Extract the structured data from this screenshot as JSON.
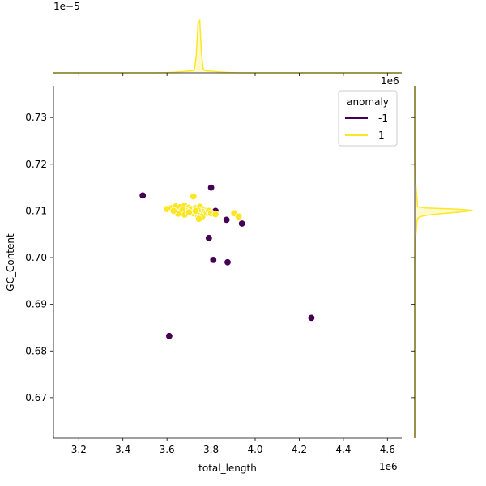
{
  "chart_data": {
    "type": "scatter",
    "title": "",
    "xlabel": "total_length",
    "ylabel": "GC_Content",
    "x_offset_label": "1e6",
    "top_marginal_offset_label": "1e−5",
    "right_marginal_offset_label": "1e6",
    "xlim": [
      3.085,
      4.665
    ],
    "ylim": [
      0.6613,
      0.7368
    ],
    "x_ticks": [
      "3.2",
      "3.4",
      "3.6",
      "3.8",
      "4.0",
      "4.2",
      "4.4",
      "4.6"
    ],
    "y_ticks": [
      "0.67",
      "0.68",
      "0.69",
      "0.70",
      "0.71",
      "0.72",
      "0.73"
    ],
    "grid": false,
    "legend": {
      "title": "anomaly",
      "placement": "top-right",
      "entries": [
        {
          "label": "-1",
          "color": "#440154"
        },
        {
          "label": "1",
          "color": "#fde725"
        }
      ]
    },
    "series": [
      {
        "name": "-1",
        "color": "#440154",
        "points": [
          [
            3.49,
            0.7133
          ],
          [
            3.8,
            0.715
          ],
          [
            3.82,
            0.71
          ],
          [
            3.87,
            0.7081
          ],
          [
            3.94,
            0.7073
          ],
          [
            3.79,
            0.7042
          ],
          [
            3.81,
            0.6995
          ],
          [
            3.875,
            0.699
          ],
          [
            4.255,
            0.6871
          ],
          [
            3.61,
            0.6832
          ]
        ]
      },
      {
        "name": "1",
        "color": "#fde725",
        "points": [
          [
            3.72,
            0.7131
          ],
          [
            3.6,
            0.7104
          ],
          [
            3.62,
            0.7106
          ],
          [
            3.64,
            0.711
          ],
          [
            3.66,
            0.7108
          ],
          [
            3.68,
            0.7111
          ],
          [
            3.7,
            0.7107
          ],
          [
            3.71,
            0.7104
          ],
          [
            3.73,
            0.7106
          ],
          [
            3.75,
            0.7109
          ],
          [
            3.77,
            0.7103
          ],
          [
            3.78,
            0.71
          ],
          [
            3.76,
            0.7098
          ],
          [
            3.74,
            0.7101
          ],
          [
            3.69,
            0.7099
          ],
          [
            3.67,
            0.7102
          ],
          [
            3.65,
            0.7094
          ],
          [
            3.68,
            0.7092
          ],
          [
            3.72,
            0.7095
          ],
          [
            3.74,
            0.709
          ],
          [
            3.76,
            0.7088
          ],
          [
            3.745,
            0.7083
          ],
          [
            3.78,
            0.7096
          ],
          [
            3.79,
            0.71
          ],
          [
            3.8,
            0.7095
          ],
          [
            3.7,
            0.7097
          ],
          [
            3.63,
            0.71
          ],
          [
            3.73,
            0.71
          ],
          [
            3.82,
            0.7093
          ],
          [
            3.905,
            0.7095
          ],
          [
            3.925,
            0.7088
          ]
        ]
      }
    ],
    "top_marginal": {
      "type": "kde",
      "color": "#fde725",
      "peak_x": 3.745
    },
    "right_marginal": {
      "type": "kde",
      "color": "#fde725",
      "peak_y": 0.7102
    }
  }
}
